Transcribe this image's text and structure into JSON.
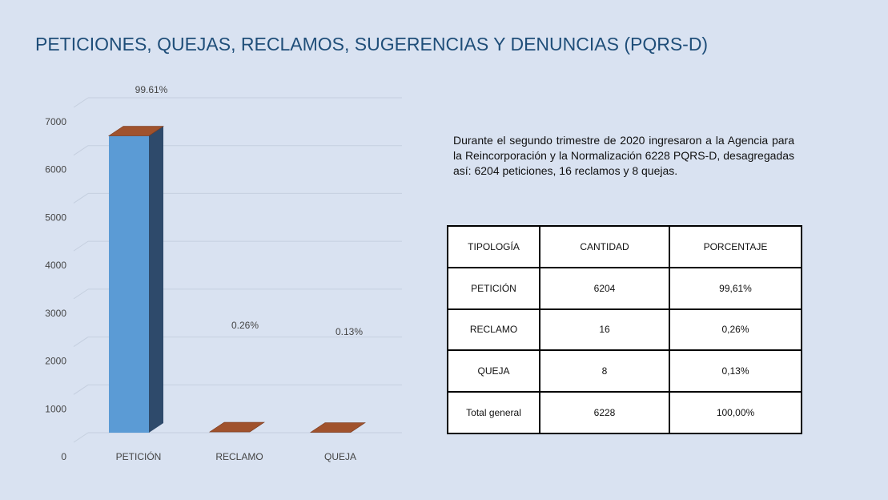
{
  "title": "PETICIONES, QUEJAS, RECLAMOS, SUGERENCIAS Y DENUNCIAS (PQRS-D)",
  "description": "Durante el segundo trimestre de 2020 ingresaron a la Agencia para la Reincorporación y la Normalización 6228 PQRS-D, desagregadas así: 6204 peticiones, 16 reclamos y 8 quejas.",
  "chart_data": {
    "type": "bar",
    "categories": [
      "PETICIÓN",
      "RECLAMO",
      "QUEJA"
    ],
    "values": [
      6204,
      16,
      8
    ],
    "data_labels": [
      "99.61%",
      "0.26%",
      "0.13%"
    ],
    "ylim": [
      0,
      7000
    ],
    "yticks": [
      0,
      1000,
      2000,
      3000,
      4000,
      5000,
      6000,
      7000
    ],
    "grid": true,
    "style": "3d",
    "colors": {
      "front": "#5b9bd5",
      "side": "#2e4a6b",
      "top": "#a0522d"
    }
  },
  "table": {
    "headers": [
      "TIPOLOGÍA",
      "CANTIDAD",
      "PORCENTAJE"
    ],
    "rows": [
      [
        "PETICIÓN",
        "6204",
        "99,61%"
      ],
      [
        "RECLAMO",
        "16",
        "0,26%"
      ],
      [
        "QUEJA",
        "8",
        "0,13%"
      ],
      [
        "Total general",
        "6228",
        "100,00%"
      ]
    ]
  },
  "colors": {
    "background": "#d9e2f1",
    "title": "#1f4e79"
  }
}
